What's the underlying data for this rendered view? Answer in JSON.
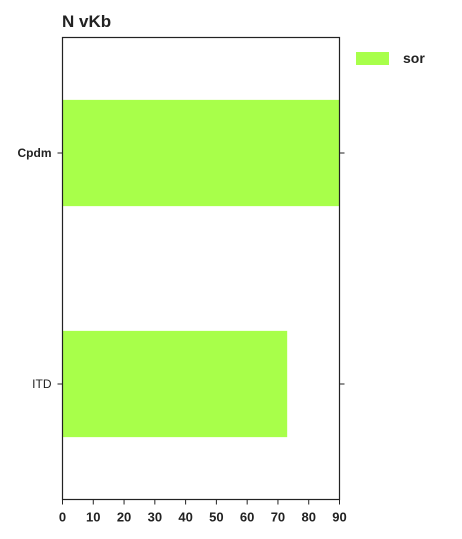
{
  "chart_data": {
    "type": "bar",
    "orientation": "horizontal",
    "title": "N  vKb",
    "xlabel": "",
    "ylabel": "",
    "categories": [
      "Cpdm",
      "ITD"
    ],
    "category_label_bold": [
      true,
      false
    ],
    "series": [
      {
        "name": "sor",
        "values": [
          90,
          73
        ],
        "color": "#a8ff4a"
      }
    ],
    "xlim": [
      0,
      90
    ],
    "xticks": [
      0,
      10,
      20,
      30,
      40,
      50,
      60,
      70,
      80,
      90
    ],
    "grid": false,
    "legend": {
      "position": "top-right-outside"
    }
  }
}
